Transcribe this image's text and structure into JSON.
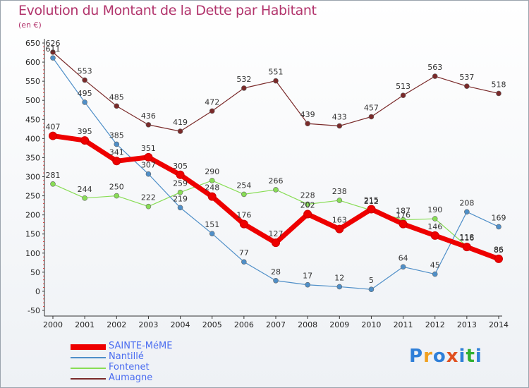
{
  "title": "Evolution du Montant de la Dette par Habitant",
  "subtitle": "(en €)",
  "logo": {
    "text": "Proxiti",
    "colors": [
      "#2f7fd8",
      "#f0a020",
      "#2f7fd8",
      "#e05020",
      "#2f7fd8",
      "#30b030",
      "#2f7fd8"
    ]
  },
  "chart_data": {
    "type": "line",
    "x": [
      2000,
      2001,
      2002,
      2003,
      2004,
      2005,
      2006,
      2007,
      2008,
      2009,
      2010,
      2011,
      2012,
      2013,
      2014
    ],
    "ylim": [
      -50,
      650
    ],
    "yticks": [
      -50,
      0,
      50,
      100,
      150,
      200,
      250,
      300,
      350,
      400,
      450,
      500,
      550,
      600,
      650
    ],
    "grid": false,
    "legend_position": "bottom-left",
    "series": [
      {
        "name": "SAINTE-MéME",
        "color": "#ee0000",
        "values": [
          407,
          395,
          341,
          351,
          305,
          248,
          176,
          127,
          202,
          163,
          215,
          176,
          146,
          116,
          85
        ]
      },
      {
        "name": "Nantillé",
        "color": "#4f8fc8",
        "values": [
          611,
          495,
          385,
          307,
          219,
          151,
          77,
          28,
          17,
          12,
          5,
          64,
          45,
          208,
          169
        ]
      },
      {
        "name": "Fontenet",
        "color": "#88dd55",
        "values": [
          281,
          244,
          250,
          222,
          259,
          290,
          254,
          266,
          228,
          238,
          212,
          187,
          190,
          118,
          86
        ]
      },
      {
        "name": "Aumagne",
        "color": "#7a2a2a",
        "values": [
          626,
          553,
          485,
          436,
          419,
          472,
          532,
          551,
          439,
          433,
          457,
          513,
          563,
          537,
          518
        ]
      }
    ]
  }
}
